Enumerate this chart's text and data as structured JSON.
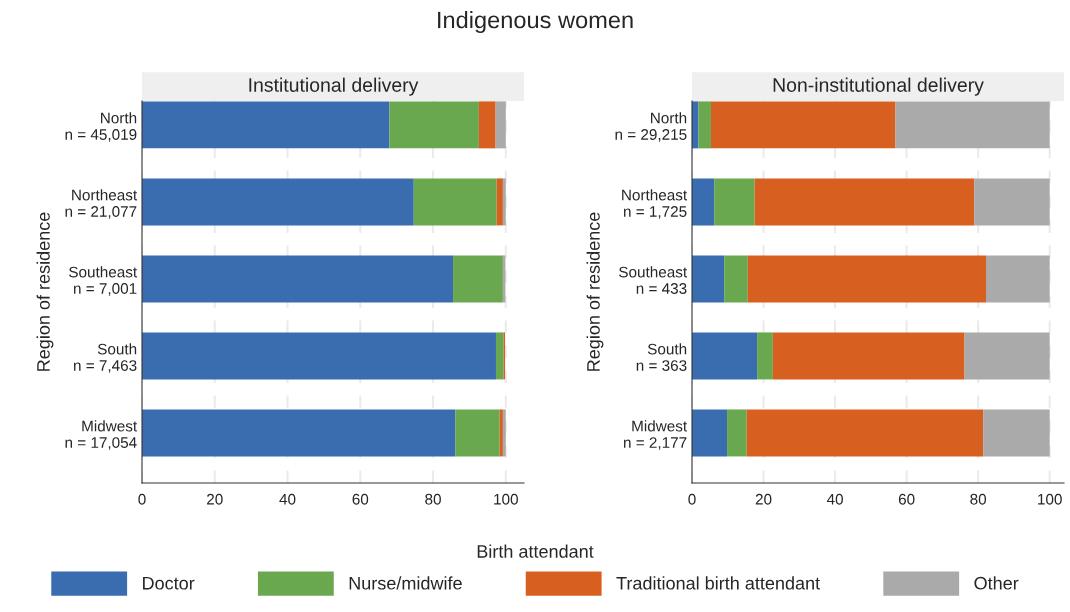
{
  "chart_data": [
    {
      "type": "bar",
      "orientation": "horizontal",
      "stacked": true,
      "title": "Institutional delivery",
      "annotations": [
        "Indigenous women"
      ],
      "xlabel": "Birth attendant",
      "ylabel": "Region of residence",
      "categories": [
        "North\nn = 45,019",
        "Northeast\nn = 21,077",
        "Southeast\nn = 7,001",
        "South\nn = 7,463",
        "Midwest\nn = 17,054"
      ],
      "series": [
        {
          "name": "Doctor",
          "color": "#3a6db0",
          "values": [
            68.0,
            74.7,
            85.5,
            97.3,
            86.1
          ]
        },
        {
          "name": "Nurse/midwife",
          "color": "#6aa84f",
          "values": [
            24.6,
            22.8,
            13.7,
            2.1,
            12.2
          ]
        },
        {
          "name": "Traditional birth attendant",
          "color": "#d75f1f",
          "values": [
            4.6,
            1.7,
            null,
            0.4,
            0.9
          ]
        },
        {
          "name": "Other",
          "color": "#aaaaaa",
          "values": [
            2.8,
            0.8,
            0.7,
            null,
            0.8
          ]
        }
      ],
      "xlim": [
        0,
        105
      ],
      "xticks": [
        0,
        20,
        40,
        60,
        80,
        100
      ],
      "grid": "x",
      "legend": "bottom"
    },
    {
      "type": "bar",
      "orientation": "horizontal",
      "stacked": true,
      "title": "Non-institutional delivery",
      "ylabel": "Region of residence",
      "categories": [
        "North\nn = 29,215",
        "Northeast\nn = 1,725",
        "Southeast\nn = 433",
        "South\nn = 363",
        "Midwest\nn = 2,177"
      ],
      "series": [
        {
          "color": "#3a6db0",
          "values": [
            1.8,
            6.2,
            9.0,
            18.2,
            9.8
          ]
        },
        {
          "color": "#6aa84f",
          "values": [
            3.5,
            11.3,
            6.6,
            4.4,
            5.5
          ]
        },
        {
          "color": "#d75f1f",
          "values": [
            51.6,
            61.4,
            66.6,
            53.6,
            66.1
          ]
        },
        {
          "color": "#aaaaaa",
          "values": [
            43.1,
            21.1,
            17.8,
            23.8,
            18.6
          ]
        }
      ],
      "xlim": [
        0,
        104
      ],
      "xticks": [
        0,
        20,
        40,
        60,
        80,
        100
      ],
      "grid": "x"
    }
  ]
}
